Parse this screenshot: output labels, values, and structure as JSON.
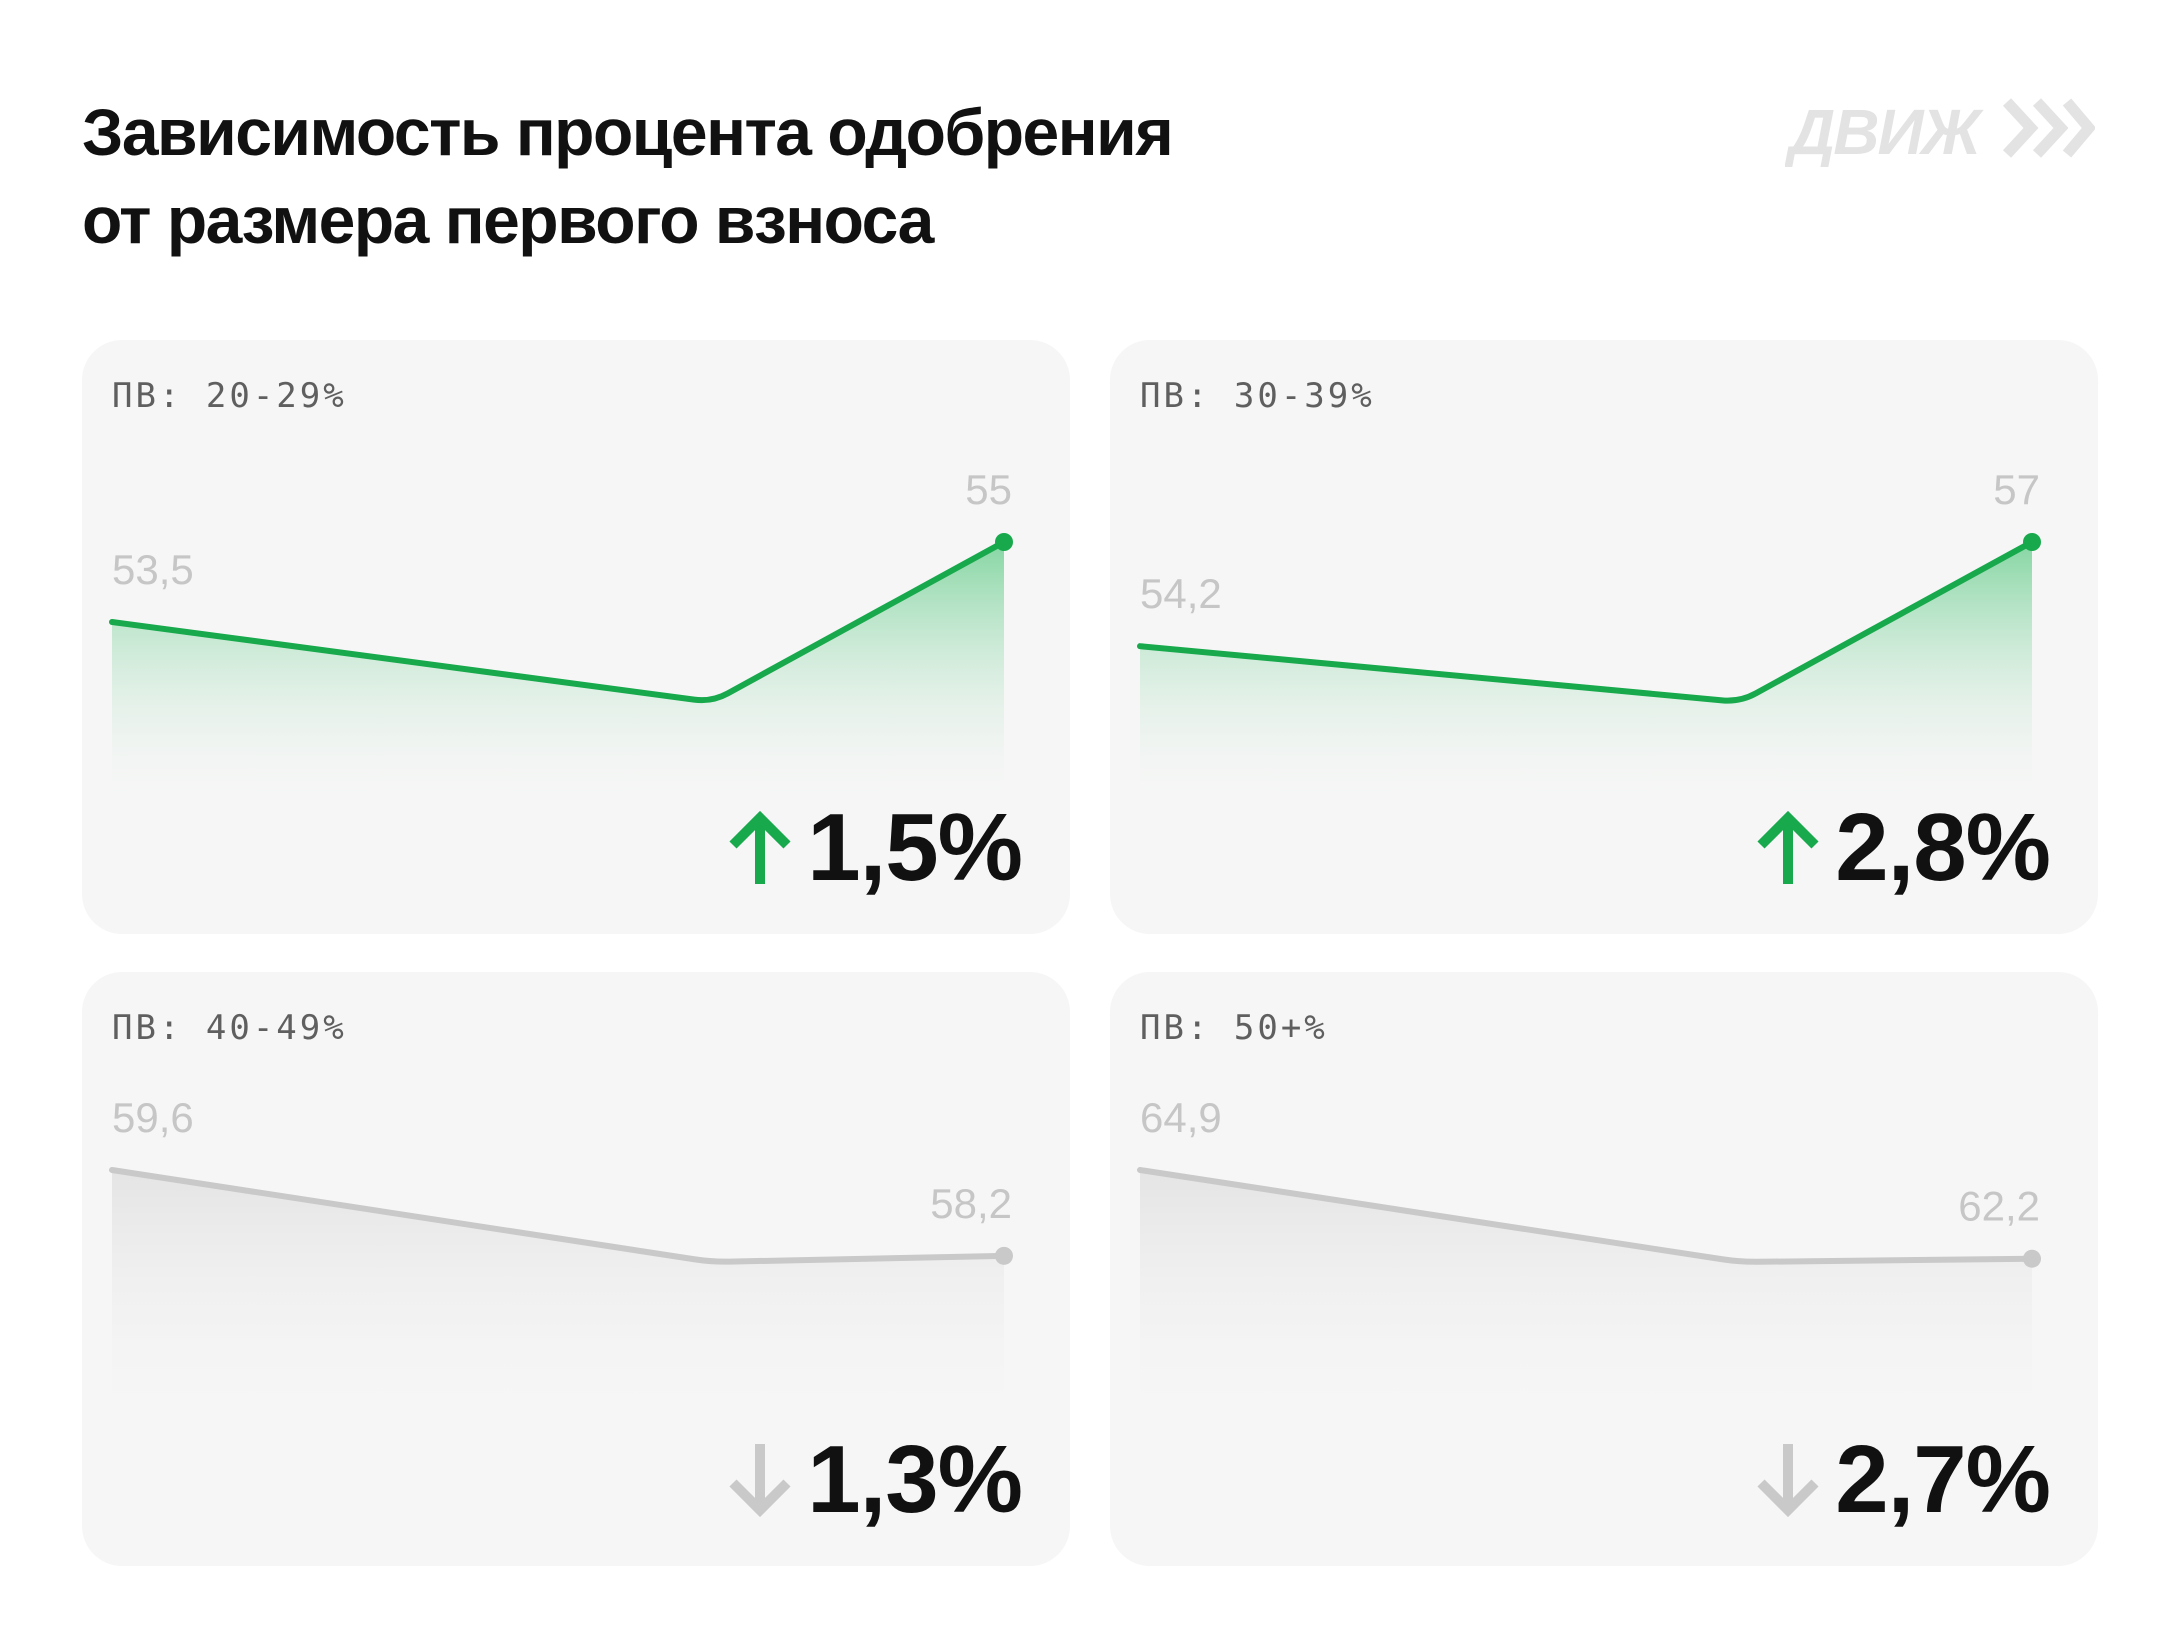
{
  "title": {
    "line1": "Зависимость процента одобрения",
    "line2": "от размера первого взноса"
  },
  "brand": {
    "logo_text": "ДВИЖ",
    "icon": "double-chevron-right-icon",
    "color": "#e3e3e3"
  },
  "colors": {
    "up": "#17a94c",
    "down": "#c9c9c9"
  },
  "chart_data": [
    {
      "type": "line",
      "label": "ПВ: 20-29%",
      "trend": "up",
      "points": [
        53.5,
        52.0,
        55.0
      ],
      "labeled": [
        {
          "index": 0,
          "text": "53,5"
        },
        {
          "index": 2,
          "text": "55"
        }
      ],
      "delta": "1,5%"
    },
    {
      "type": "line",
      "label": "ПВ: 30-39%",
      "trend": "up",
      "points": [
        54.2,
        52.7,
        57.0
      ],
      "labeled": [
        {
          "index": 0,
          "text": "54,2"
        },
        {
          "index": 2,
          "text": "57"
        }
      ],
      "delta": "2,8%"
    },
    {
      "type": "line",
      "label": "ПВ: 40-49%",
      "trend": "down",
      "points": [
        59.6,
        58.1,
        58.2
      ],
      "labeled": [
        {
          "index": 0,
          "text": "59,6"
        },
        {
          "index": 2,
          "text": "58,2"
        }
      ],
      "delta": "1,3%"
    },
    {
      "type": "line",
      "label": "ПВ: 50+%",
      "trend": "down",
      "points": [
        64.9,
        62.1,
        62.2
      ],
      "labeled": [
        {
          "index": 0,
          "text": "64,9"
        },
        {
          "index": 2,
          "text": "62,2"
        }
      ],
      "delta": "2,7%"
    }
  ]
}
